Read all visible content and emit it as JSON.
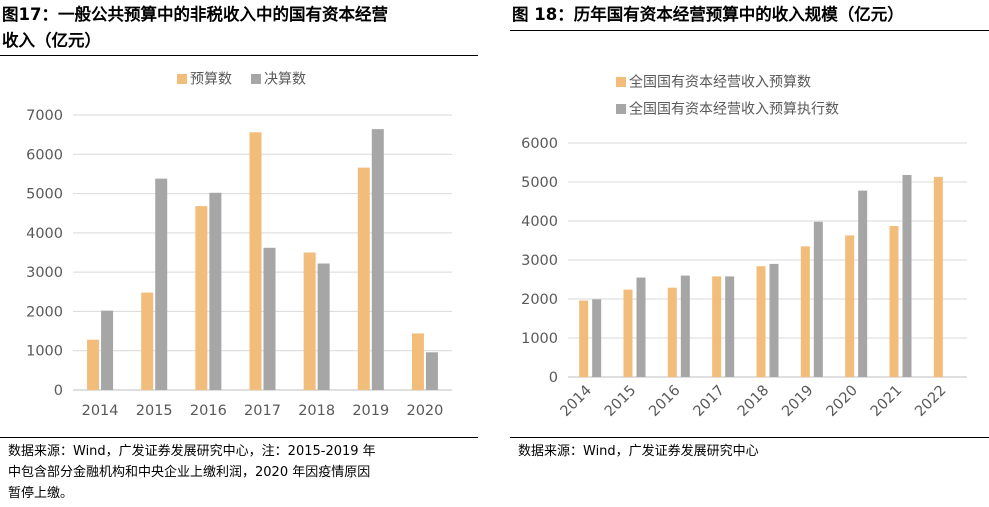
{
  "colors": {
    "budget": "#F2BC7A",
    "actual": "#A6A6A6",
    "grid": "#D9D9D9",
    "axis": "#BFBFBF",
    "tick_text": "#595959"
  },
  "left": {
    "title_line1": "图17：一般公共预算中的非税收入中的国有资本经营",
    "title_line2": "收入（亿元）",
    "source_lines": [
      "数据来源：Wind，广发证券发展研究中心，注：2015-2019 年",
      "中包含部分金融机构和中央企业上缴利润，2020 年因疫情原因",
      "暂停上缴。"
    ]
  },
  "right": {
    "title": "图 18：历年国有资本经营预算中的收入规模（亿元）",
    "source": "数据来源：Wind，广发证券发展研究中心"
  },
  "chart_data": [
    {
      "type": "bar",
      "title": "图17：一般公共预算中的非税收入中的国有资本经营收入（亿元）",
      "categories": [
        "2014",
        "2015",
        "2016",
        "2017",
        "2018",
        "2019",
        "2020"
      ],
      "series": [
        {
          "name": "预算数",
          "values": [
            1280,
            2480,
            4680,
            6560,
            3500,
            5660,
            1440
          ]
        },
        {
          "name": "决算数",
          "values": [
            2020,
            5380,
            5020,
            3620,
            3220,
            6640,
            960
          ]
        }
      ],
      "yticks": [
        "0",
        "1000",
        "2000",
        "3000",
        "4000",
        "5000",
        "6000",
        "7000"
      ],
      "ylim": [
        0,
        7000
      ],
      "legend": "top-center",
      "grid": true
    },
    {
      "type": "bar",
      "title": "图 18：历年国有资本经营预算中的收入规模（亿元）",
      "categories": [
        "2014",
        "2015",
        "2016",
        "2017",
        "2018",
        "2019",
        "2020",
        "2021",
        "2022"
      ],
      "series": [
        {
          "name": "全国国有资本经营收入预算数",
          "values": [
            1960,
            2240,
            2290,
            2580,
            2840,
            3350,
            3630,
            3870,
            5130
          ]
        },
        {
          "name": "全国国有资本经营收入预算执行数",
          "values": [
            1990,
            2550,
            2600,
            2580,
            2900,
            3980,
            4780,
            5180,
            null
          ]
        }
      ],
      "yticks": [
        "0",
        "1000",
        "2000",
        "3000",
        "4000",
        "5000",
        "6000"
      ],
      "ylim": [
        0,
        6000
      ],
      "legend": "top-left",
      "grid": true
    }
  ]
}
